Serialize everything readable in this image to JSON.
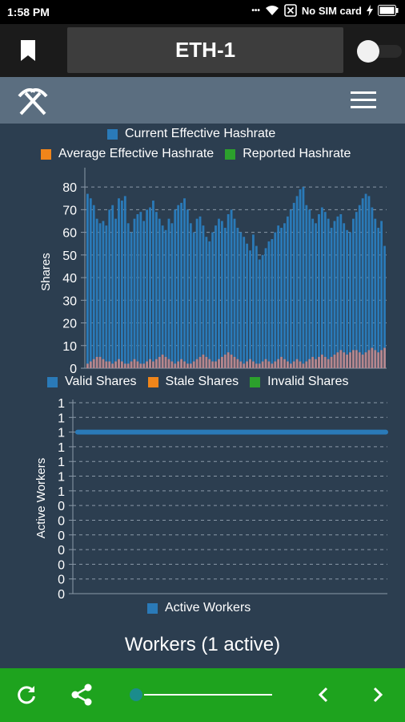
{
  "status_bar": {
    "time": "1:58 PM",
    "sim_text": "No SIM card",
    "dots": "•••"
  },
  "app_bar": {
    "title": "ETH-1"
  },
  "hashrate_legend": [
    {
      "label": "Current Effective Hashrate",
      "color": "#2a7ab8"
    },
    {
      "label": "Average Effective Hashrate",
      "color": "#f0851a"
    },
    {
      "label": "Reported Hashrate",
      "color": "#2ca02c"
    }
  ],
  "shares_legend": [
    {
      "label": "Valid Shares",
      "color": "#2a7ab8"
    },
    {
      "label": "Stale Shares",
      "color": "#f0851a"
    },
    {
      "label": "Invalid Shares",
      "color": "#2ca02c"
    }
  ],
  "workers_legend": [
    {
      "label": "Active Workers",
      "color": "#2a7ab8"
    }
  ],
  "chart_data": [
    {
      "type": "bar",
      "ylabel": "Shares",
      "ylim": [
        0,
        85
      ],
      "yticks": [
        0,
        10,
        20,
        30,
        40,
        50,
        60,
        70,
        80
      ],
      "grid": true,
      "series": [
        {
          "name": "Valid Shares",
          "color": "#2a7ab8",
          "values": [
            77,
            75,
            72,
            66,
            64,
            65,
            63,
            70,
            72,
            66,
            75,
            74,
            76,
            64,
            60,
            66,
            68,
            69,
            65,
            70,
            71,
            74,
            69,
            66,
            63,
            61,
            66,
            64,
            70,
            72,
            73,
            75,
            70,
            64,
            60,
            66,
            67,
            63,
            58,
            56,
            60,
            63,
            66,
            65,
            62,
            68,
            70,
            66,
            62,
            60,
            58,
            55,
            52,
            59,
            54,
            48,
            50,
            53,
            56,
            57,
            60,
            63,
            62,
            64,
            67,
            70,
            73,
            76,
            79,
            80,
            72,
            70,
            66,
            64,
            68,
            71,
            69,
            66,
            62,
            65,
            67,
            68,
            64,
            61,
            60,
            66,
            69,
            72,
            75,
            77,
            76,
            71,
            66,
            62,
            65,
            54
          ]
        },
        {
          "name": "Stale Shares",
          "color": "#b6868d",
          "values": [
            2,
            3,
            4,
            5,
            5,
            4,
            3,
            3,
            2,
            3,
            4,
            3,
            2,
            2,
            3,
            4,
            3,
            2,
            2,
            3,
            4,
            3,
            4,
            5,
            6,
            5,
            4,
            3,
            2,
            3,
            4,
            3,
            2,
            2,
            3,
            4,
            5,
            6,
            5,
            4,
            3,
            3,
            4,
            5,
            6,
            7,
            6,
            5,
            4,
            3,
            2,
            3,
            4,
            3,
            2,
            2,
            3,
            4,
            3,
            2,
            3,
            4,
            5,
            4,
            3,
            2,
            3,
            4,
            3,
            2,
            3,
            4,
            5,
            4,
            5,
            6,
            5,
            4,
            5,
            6,
            7,
            8,
            7,
            6,
            7,
            8,
            8,
            7,
            6,
            7,
            8,
            9,
            8,
            7,
            8,
            9
          ]
        },
        {
          "name": "Invalid Shares",
          "color": "#2ca02c",
          "values": []
        }
      ]
    },
    {
      "type": "line",
      "ylabel": "Active Workers",
      "yticks": [
        "0",
        "0",
        "0",
        "0",
        "0",
        "0",
        "0",
        "1",
        "1",
        "1",
        "1",
        "1",
        "1",
        "1"
      ],
      "grid": true,
      "series": [
        {
          "name": "Active Workers",
          "color": "#2a7ab8",
          "constant": 1
        }
      ]
    }
  ],
  "workers_title": "Workers (1 active)",
  "bottom_bar": {
    "slider_position": 0.0
  }
}
